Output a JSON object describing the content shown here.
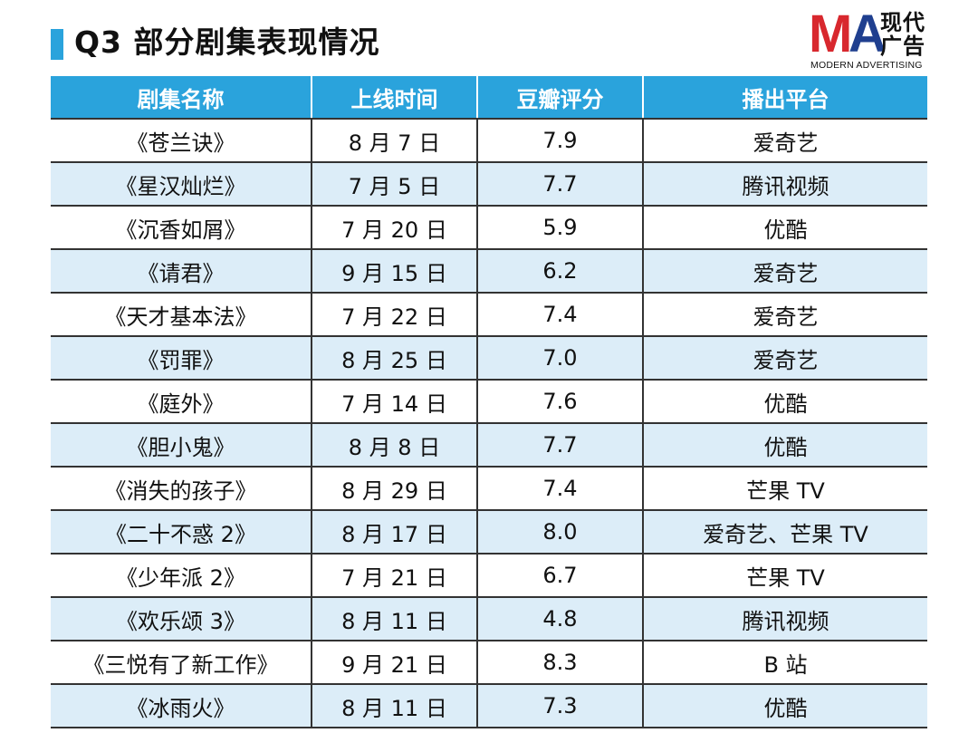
{
  "title": "Q3 部分剧集表现情况",
  "logo": {
    "mark_m": "M",
    "mark_a": "A",
    "cn": "现代广告",
    "en": "MODERN ADVERTISING"
  },
  "colors": {
    "accent": "#2aa3dc",
    "row_alt": "#dcedf8",
    "logo_red": "#d8282e",
    "logo_blue": "#1f3f8f"
  },
  "table": {
    "headers": [
      "剧集名称",
      "上线时间",
      "豆瓣评分",
      "播出平台"
    ],
    "rows": [
      [
        "《苍兰诀》",
        "8 月 7 日",
        "7.9",
        "爱奇艺"
      ],
      [
        "《星汉灿烂》",
        "7 月 5 日",
        "7.7",
        "腾讯视频"
      ],
      [
        "《沉香如屑》",
        "7 月 20 日",
        "5.9",
        "优酷"
      ],
      [
        "《请君》",
        "9 月 15 日",
        "6.2",
        "爱奇艺"
      ],
      [
        "《天才基本法》",
        "7 月 22 日",
        "7.4",
        "爱奇艺"
      ],
      [
        "《罚罪》",
        "8 月 25 日",
        "7.0",
        "爱奇艺"
      ],
      [
        "《庭外》",
        "7 月 14 日",
        "7.6",
        "优酷"
      ],
      [
        "《胆小鬼》",
        "8 月 8 日",
        "7.7",
        "优酷"
      ],
      [
        "《消失的孩子》",
        "8 月 29 日",
        "7.4",
        "芒果 TV"
      ],
      [
        "《二十不惑 2》",
        "8 月 17 日",
        "8.0",
        "爱奇艺、芒果 TV"
      ],
      [
        "《少年派 2》",
        "7 月 21 日",
        "6.7",
        "芒果 TV"
      ],
      [
        "《欢乐颂 3》",
        "8 月 11 日",
        "4.8",
        "腾讯视频"
      ],
      [
        "《三悦有了新工作》",
        "9 月 21 日",
        "8.3",
        "B 站"
      ],
      [
        "《冰雨火》",
        "8 月 11 日",
        "7.3",
        "优酷"
      ]
    ]
  }
}
